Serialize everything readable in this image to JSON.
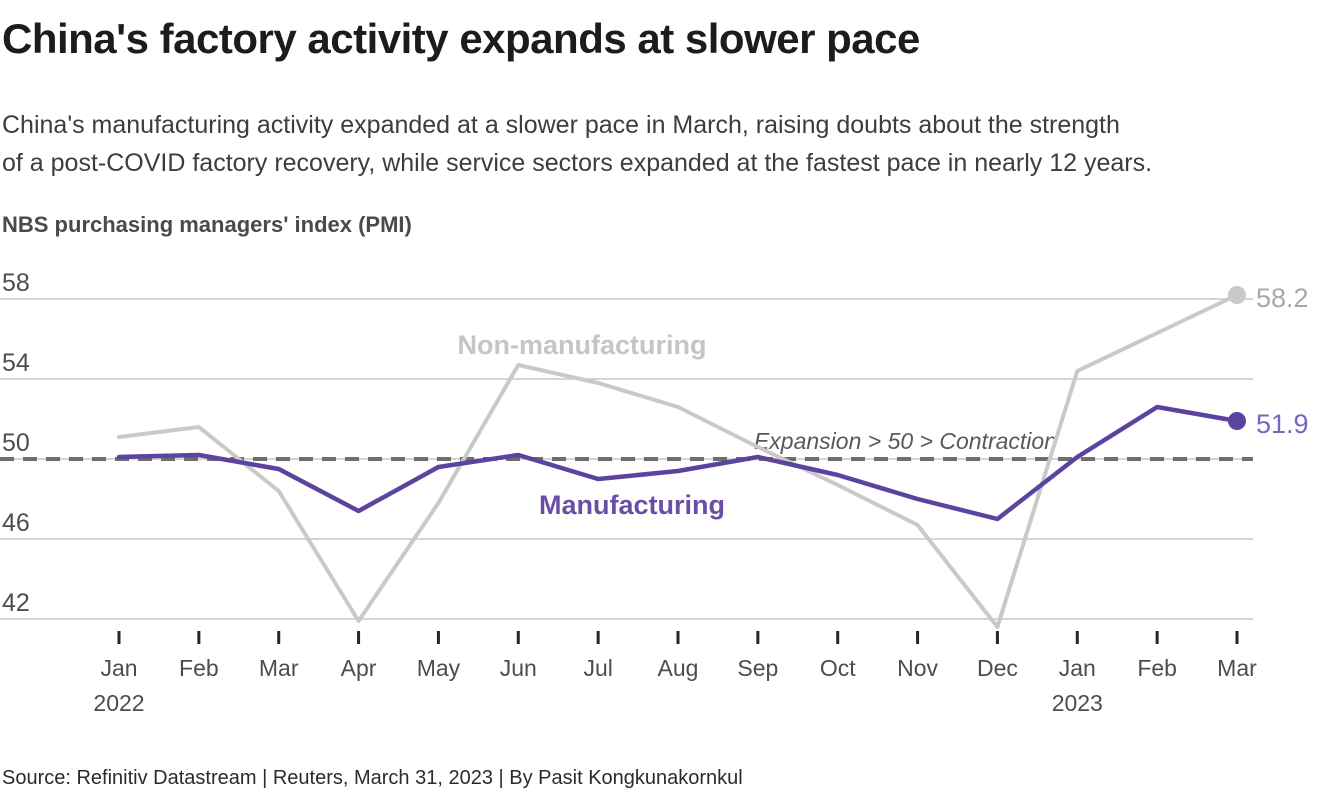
{
  "page": {
    "title": "China's factory activity expands at slower pace",
    "subtitle_lines": [
      "China's manufacturing activity expanded at a slower pace in March, raising doubts about the strength",
      "of a post-COVID factory recovery, while service sectors expanded at the fastest pace in nearly 12 years."
    ],
    "source": "Source: Refinitiv Datastream | Reuters, March 31, 2023 | By Pasit Kongkunakornkul"
  },
  "chart_data": {
    "type": "line",
    "title": "NBS purchasing managers' index (PMI)",
    "xlabel": "",
    "ylabel": "",
    "ylim": [
      41,
      59
    ],
    "yticks": [
      58,
      54,
      50,
      46,
      42
    ],
    "grid": true,
    "grid_color": "#c7c7c7",
    "axis_color": "#4d4d4d",
    "tick_mark_color": "#262626",
    "x": {
      "labels": [
        "Jan",
        "Feb",
        "Mar",
        "Apr",
        "May",
        "Jun",
        "Jul",
        "Aug",
        "Sep",
        "Oct",
        "Nov",
        "Dec",
        "Jan",
        "Feb",
        "Mar"
      ],
      "year_labels": [
        {
          "index": 0,
          "label": "2022"
        },
        {
          "index": 12,
          "label": "2023"
        }
      ]
    },
    "series": [
      {
        "name": "Non-manufacturing",
        "color": "#c9c9c9",
        "label_color": "#c5c5c5",
        "end_label": "58.2",
        "end_label_color": "#a9a9a9",
        "values": [
          51.1,
          51.6,
          48.4,
          41.9,
          47.8,
          54.7,
          53.8,
          52.6,
          50.6,
          48.7,
          46.7,
          41.6,
          54.4,
          56.3,
          58.2
        ]
      },
      {
        "name": "Manufacturing",
        "color": "#5c449e",
        "label_color": "#6a4da6",
        "end_label": "51.9",
        "end_label_color": "#7a64c0",
        "values": [
          50.1,
          50.2,
          49.5,
          47.4,
          49.6,
          50.2,
          49.0,
          49.4,
          50.1,
          49.2,
          48.0,
          47.0,
          50.1,
          52.6,
          51.9
        ]
      }
    ],
    "reference_line": {
      "value": 50,
      "label": "Expansion > 50 > Contraction",
      "label_color": "#595959",
      "color": "#6e6e6e"
    },
    "legend_position": "inline-labels"
  }
}
